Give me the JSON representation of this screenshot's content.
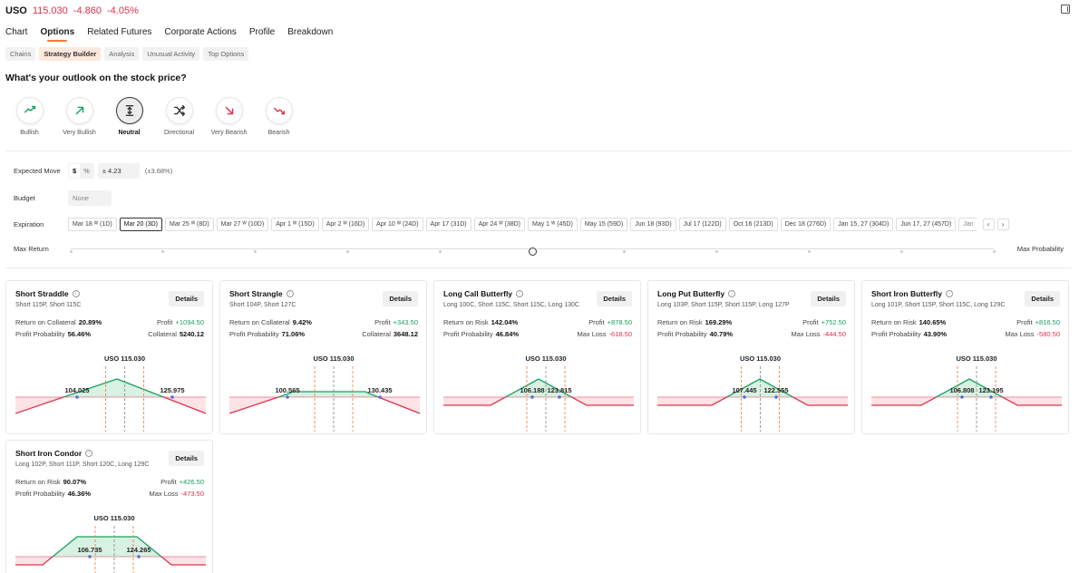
{
  "ticker": {
    "symbol": "USO",
    "price": "115.030",
    "change": "-4.860",
    "change_pct": "-4.05%"
  },
  "main_tabs": [
    {
      "label": "Chart"
    },
    {
      "label": "Options",
      "active": true
    },
    {
      "label": "Related Futures"
    },
    {
      "label": "Corporate Actions"
    },
    {
      "label": "Profile"
    },
    {
      "label": "Breakdown"
    }
  ],
  "sub_tabs": [
    {
      "label": "Chains"
    },
    {
      "label": "Strategy Builder",
      "active": true
    },
    {
      "label": "Analysis"
    },
    {
      "label": "Unusual Activity"
    },
    {
      "label": "Top Options"
    }
  ],
  "outlook_question": "What's your outlook on the stock price?",
  "outlooks": [
    {
      "label": "Bullish",
      "icon": "trend-up-icon",
      "color": "#18a05e"
    },
    {
      "label": "Very Bullish",
      "icon": "arrow-up-right-icon",
      "color": "#18a05e"
    },
    {
      "label": "Neutral",
      "icon": "neutral-icon",
      "color": "#333333",
      "active": true
    },
    {
      "label": "Directional",
      "icon": "shuffle-icon",
      "color": "#333333"
    },
    {
      "label": "Very Bearish",
      "icon": "arrow-down-right-icon",
      "color": "#e0314b"
    },
    {
      "label": "Bearish",
      "icon": "trend-down-icon",
      "color": "#e0314b"
    }
  ],
  "filters": {
    "expected_move_label": "Expected Move",
    "unit_dollar": "$",
    "unit_percent": "%",
    "expected_move_value": "± 4.23",
    "expected_move_pct": "(±3.68%)",
    "budget_label": "Budget",
    "budget_placeholder": "None",
    "expiration_label": "Expiration",
    "expirations": [
      {
        "label": "Mar 18 ᵂ (1D)"
      },
      {
        "label": "Mar 20 (3D)",
        "active": true
      },
      {
        "label": "Mar 25 ᵂ (8D)"
      },
      {
        "label": "Mar 27 ᵂ (10D)"
      },
      {
        "label": "Apr 1 ᵂ (15D)"
      },
      {
        "label": "Apr 2 ᵂ (16D)"
      },
      {
        "label": "Apr 10 ᵂ (24D)"
      },
      {
        "label": "Apr 17 (31D)"
      },
      {
        "label": "Apr 24 ᵂ (38D)"
      },
      {
        "label": "May 1 ᵂ (45D)"
      },
      {
        "label": "May 15 (59D)"
      },
      {
        "label": "Jun 18 (93D)"
      },
      {
        "label": "Jul 17 (122D)"
      },
      {
        "label": "Oct 16 (213D)"
      },
      {
        "label": "Dec 18 (276D)"
      },
      {
        "label": "Jan 15, 27 (304D)"
      },
      {
        "label": "Jun 17, 27 (457D)"
      },
      {
        "label": "Jan",
        "cut": true
      }
    ],
    "nav_prev": "‹",
    "nav_next": "›",
    "slider_left_label": "Max Return",
    "slider_right_label": "Max Probability",
    "slider_value": 0.5,
    "slider_steps": 11
  },
  "colors": {
    "profit": "#18a05e",
    "loss": "#e0314b",
    "accent": "#f07a34",
    "dot": "#4f6fd8"
  },
  "strategies": [
    {
      "name": "Short Straddle",
      "legs": "Short 115P, Short 115C",
      "details_label": "Details",
      "return_label": "Return on Collateral",
      "return_value": "20.89%",
      "profit_label": "Profit",
      "profit_value": "+1094.50",
      "prob_label": "Profit Probability",
      "prob_value": "56.46%",
      "right2_label": "Collateral",
      "right2_value": "5240.12",
      "right2_neg": false,
      "chart": {
        "price_label": "USO 115.030",
        "breakevens": [
          "104.025",
          "125.975"
        ]
      }
    },
    {
      "name": "Short Strangle",
      "legs": "Short 104P, Short 127C",
      "details_label": "Details",
      "return_label": "Return on Collateral",
      "return_value": "9.42%",
      "profit_label": "Profit",
      "profit_value": "+343.50",
      "prob_label": "Profit Probability",
      "prob_value": "71.06%",
      "right2_label": "Collateral",
      "right2_value": "3648.12",
      "right2_neg": false,
      "chart": {
        "price_label": "USO 115.030",
        "breakevens": [
          "100.565",
          "130.435"
        ]
      }
    },
    {
      "name": "Long Call Butterfly",
      "legs": "Long 100C, Short 115C, Short 115C, Long 130C",
      "details_label": "Details",
      "return_label": "Return on Risk",
      "return_value": "142.04%",
      "profit_label": "Profit",
      "profit_value": "+878.50",
      "prob_label": "Profit Probability",
      "prob_value": "46.84%",
      "right2_label": "Max Loss",
      "right2_value": "-618.50",
      "right2_neg": true,
      "chart": {
        "price_label": "USO 115.030",
        "breakevens": [
          "106.188",
          "123.815"
        ]
      }
    },
    {
      "name": "Long Put Butterfly",
      "legs": "Long 103P, Short 115P, Short 115P, Long 127P",
      "details_label": "Details",
      "return_label": "Return on Risk",
      "return_value": "169.29%",
      "profit_label": "Profit",
      "profit_value": "+752.50",
      "prob_label": "Profit Probability",
      "prob_value": "40.79%",
      "right2_label": "Max Loss",
      "right2_value": "-444.50",
      "right2_neg": true,
      "chart": {
        "price_label": "USO 115.030",
        "breakevens": [
          "107.445",
          "122.555"
        ]
      }
    },
    {
      "name": "Short Iron Butterfly",
      "legs": "Long 101P, Short 115P, Short 115C, Long 129C",
      "details_label": "Details",
      "return_label": "Return on Risk",
      "return_value": "140.65%",
      "profit_label": "Profit",
      "profit_value": "+816.50",
      "prob_label": "Profit Probability",
      "prob_value": "43.90%",
      "right2_label": "Max Loss",
      "right2_value": "-580.50",
      "right2_neg": true,
      "chart": {
        "price_label": "USO 115.030",
        "breakevens": [
          "106.808",
          "123.195"
        ]
      }
    },
    {
      "name": "Short Iron Condor",
      "legs": "Long 102P, Short 111P, Short 120C, Long 129C",
      "details_label": "Details",
      "return_label": "Return on Risk",
      "return_value": "90.07%",
      "profit_label": "Profit",
      "profit_value": "+426.50",
      "prob_label": "Profit Probability",
      "prob_value": "46.36%",
      "right2_label": "Max Loss",
      "right2_value": "-473.50",
      "right2_neg": true,
      "chart": {
        "price_label": "USO 115.030",
        "breakevens": [
          "106.735",
          "124.265"
        ]
      }
    }
  ]
}
